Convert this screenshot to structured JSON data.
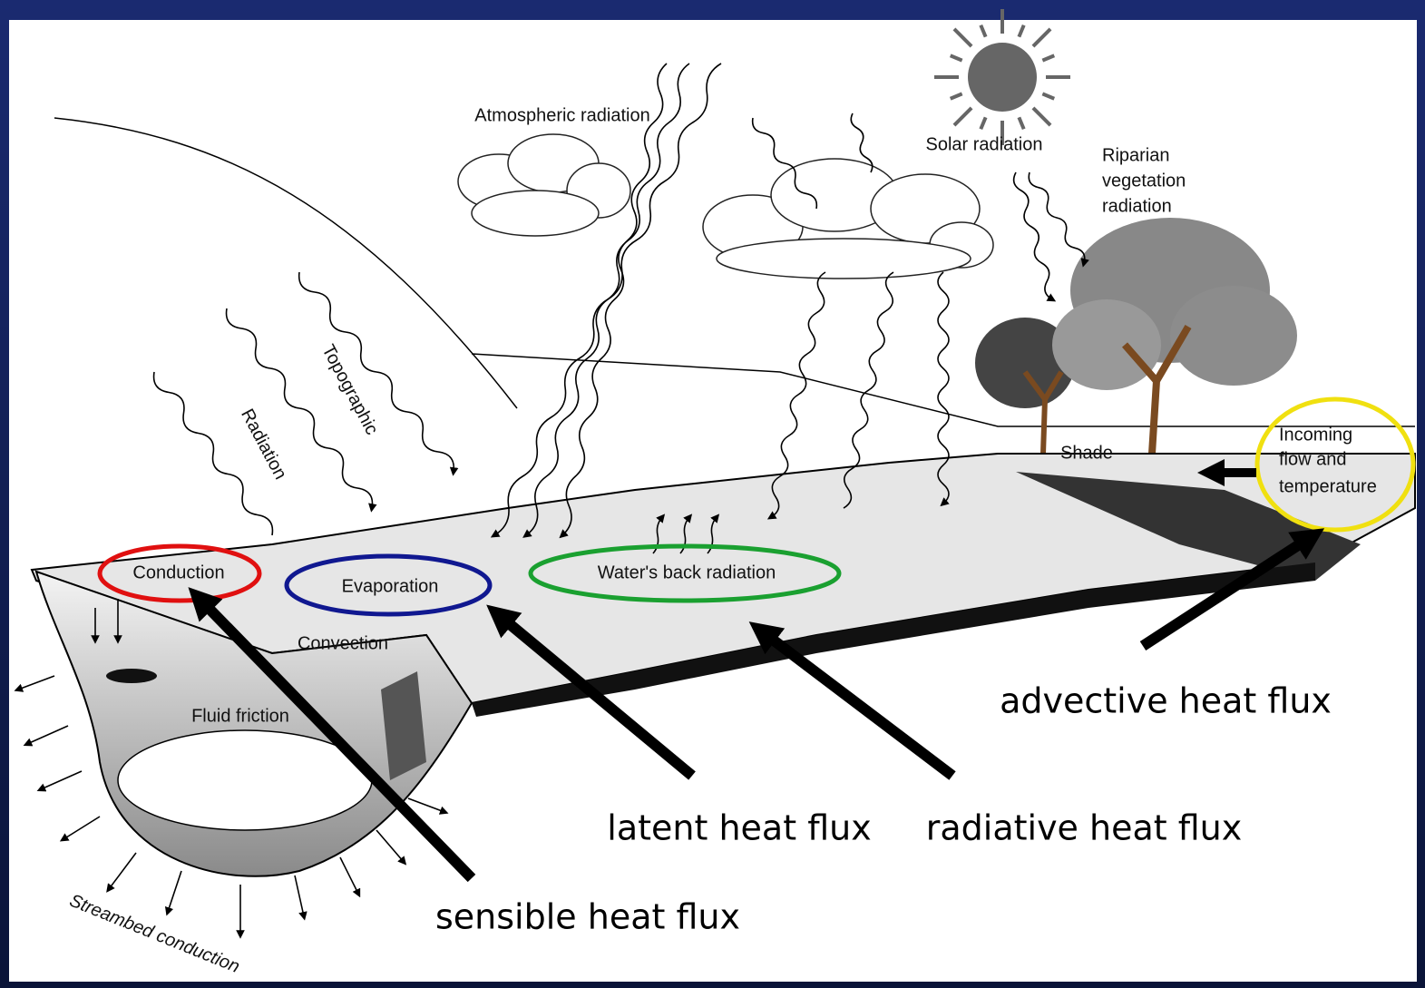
{
  "diagram": {
    "labels": {
      "atmospheric": "Atmospheric radiation",
      "solar": "Solar radiation",
      "riparian": [
        "Riparian",
        "vegetation",
        "radiation"
      ],
      "topographic": "Topographic",
      "radiation": "Radiation",
      "conduction": "Conduction",
      "evaporation": "Evaporation",
      "back_radiation": "Water's back radiation",
      "convection": "Convection",
      "fluid_friction": "Fluid friction",
      "streambed": "Streambed conduction",
      "shade": "Shade",
      "incoming": [
        "Incoming",
        "flow and",
        "temperature"
      ]
    },
    "callouts": {
      "advective": "advective heat flux",
      "latent": "latent heat flux",
      "radiative": "radiative heat flux",
      "sensible": "sensible heat flux"
    }
  }
}
